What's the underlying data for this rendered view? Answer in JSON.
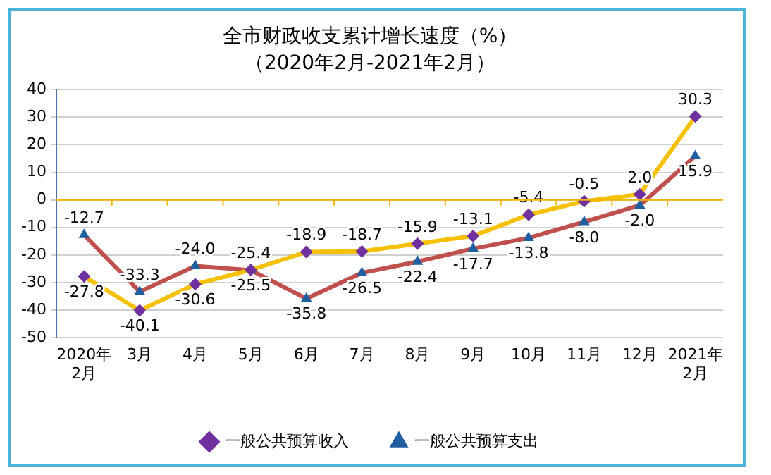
{
  "chart_data": {
    "type": "line",
    "title": "全市财政收支累计增长速度（%）",
    "subtitle": "（2020年2月-2021年2月）",
    "categories": [
      "2020年\n2月",
      "3月",
      "4月",
      "5月",
      "6月",
      "7月",
      "8月",
      "9月",
      "10月",
      "11月",
      "12月",
      "2021年\n2月"
    ],
    "series": [
      {
        "name": "一般公共预算收入",
        "color": "#f5c000",
        "marker": "diamond",
        "values": [
          -27.8,
          -40.1,
          -30.6,
          -25.4,
          -18.9,
          -18.7,
          -15.9,
          -13.1,
          -5.4,
          -0.5,
          2.0,
          30.3
        ],
        "value_labels": [
          "-27.8",
          "-40.1",
          "-30.6",
          "-25.4",
          "-18.9",
          "-18.7",
          "-15.9",
          "-13.1",
          "-5.4",
          "-0.5",
          "2.0",
          "30.3"
        ]
      },
      {
        "name": "一般公共预算支出",
        "color": "#c0504d",
        "marker": "triangle",
        "values": [
          -12.7,
          -33.3,
          -24.0,
          -25.5,
          -35.8,
          -26.5,
          -22.4,
          -17.7,
          -13.8,
          -8.0,
          -2.0,
          15.9
        ],
        "value_labels": [
          "-12.7",
          "-33.3",
          "-24.0",
          "-25.5",
          "-35.8",
          "-26.5",
          "-22.4",
          "-17.7",
          "-13.8",
          "-8.0",
          "-2.0",
          "15.9"
        ]
      }
    ],
    "ylim": [
      -50,
      40
    ],
    "yticks": [
      -50,
      -40,
      -30,
      -20,
      -10,
      0,
      10,
      20,
      30,
      40
    ],
    "grid": "y",
    "legend": "bottom",
    "line_style": "solid",
    "ref_lines": [
      {
        "axis": "y",
        "value": 0,
        "color": "#f0b400"
      }
    ]
  }
}
